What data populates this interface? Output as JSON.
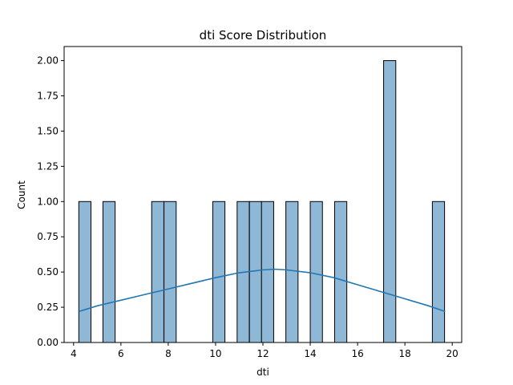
{
  "chart_data": {
    "type": "bar",
    "title": "dti Score Distribution",
    "xlabel": "dti",
    "ylabel": "Count",
    "xlim": [
      3.6,
      20.4
    ],
    "ylim": [
      0,
      2.1
    ],
    "xticks": [
      4,
      6,
      8,
      10,
      12,
      14,
      16,
      18,
      20
    ],
    "yticks": [
      0.0,
      0.25,
      0.5,
      0.75,
      1.0,
      1.25,
      1.5,
      1.75,
      2.0
    ],
    "xtick_labels": [
      "4",
      "6",
      "8",
      "10",
      "12",
      "14",
      "16",
      "18",
      "20"
    ],
    "ytick_labels": [
      "0.00",
      "0.25",
      "0.50",
      "0.75",
      "1.00",
      "1.25",
      "1.50",
      "1.75",
      "2.00"
    ],
    "bin_width": 0.515,
    "bins": [
      {
        "start": 4.22,
        "count": 1
      },
      {
        "start": 5.24,
        "count": 1
      },
      {
        "start": 7.3,
        "count": 1
      },
      {
        "start": 7.82,
        "count": 1
      },
      {
        "start": 9.88,
        "count": 1
      },
      {
        "start": 10.91,
        "count": 1
      },
      {
        "start": 11.43,
        "count": 1
      },
      {
        "start": 11.94,
        "count": 1
      },
      {
        "start": 12.97,
        "count": 1
      },
      {
        "start": 14.0,
        "count": 1
      },
      {
        "start": 15.03,
        "count": 1
      },
      {
        "start": 17.1,
        "count": 2
      },
      {
        "start": 19.16,
        "count": 1
      }
    ],
    "kde": {
      "x": [
        4.22,
        5.0,
        6.0,
        7.0,
        8.0,
        9.0,
        10.0,
        11.0,
        12.0,
        12.5,
        13.0,
        14.0,
        15.0,
        16.0,
        17.0,
        18.0,
        19.0,
        19.7
      ],
      "y": [
        0.22,
        0.26,
        0.3,
        0.34,
        0.38,
        0.42,
        0.46,
        0.495,
        0.515,
        0.52,
        0.515,
        0.495,
        0.46,
        0.41,
        0.36,
        0.31,
        0.26,
        0.22
      ]
    },
    "colors": {
      "bar_fill": "#8fb8d6",
      "bar_edge": "#000000",
      "kde_line": "#1f77b4"
    }
  }
}
